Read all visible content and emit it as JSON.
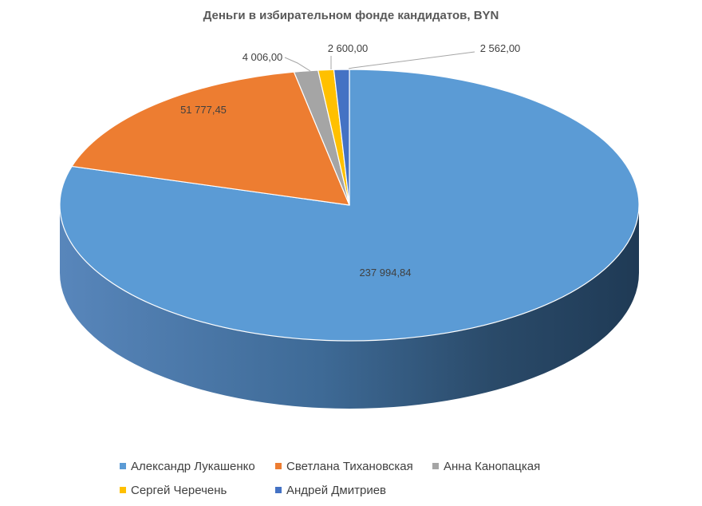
{
  "chart_data": {
    "type": "pie",
    "style": "3d",
    "title": "Деньги в избирательном фонде кандидатов, BYN",
    "start_angle_deg": 0,
    "direction": "clockwise",
    "legend_position": "bottom",
    "slices": [
      {
        "name": "Александр Лукашенко",
        "value": 237994.84,
        "label": "237 994,84",
        "color": "#5B9BD5",
        "side_color": "#41719C"
      },
      {
        "name": "Светлана Тихановская",
        "value": 51777.45,
        "label": "51 777,45",
        "color": "#ED7D31",
        "side_color": "#AE5A21"
      },
      {
        "name": "Анна Канопацкая",
        "value": 4006.0,
        "label": "4 006,00",
        "color": "#A5A5A5",
        "side_color": "#7B7B7B"
      },
      {
        "name": "Сергей Черечень",
        "value": 2600.0,
        "label": "2 600,00",
        "color": "#FFC000",
        "side_color": "#BC8C00"
      },
      {
        "name": "Андрей Дмитриев",
        "value": 2562.0,
        "label": "2 562,00",
        "color": "#4472C4",
        "side_color": "#2F5597"
      }
    ]
  }
}
